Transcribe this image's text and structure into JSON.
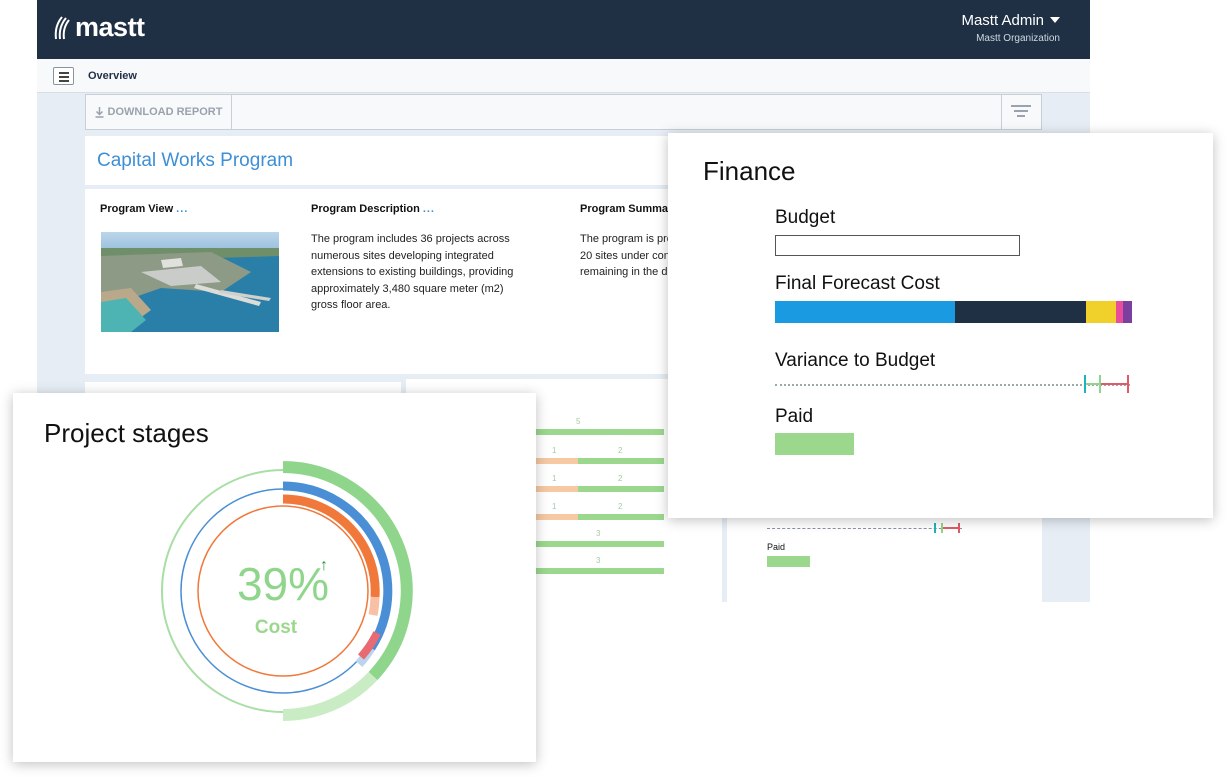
{
  "app": {
    "logo_text": "mastt",
    "user_name": "Mastt Admin",
    "user_org": "Mastt Organization",
    "breadcrumb": "Overview",
    "download_label": "DOWNLOAD REPORT"
  },
  "program": {
    "title": "Capital Works Program",
    "view_heading": "Program View",
    "description_heading": "Program Description",
    "summary_heading": "Program Summar",
    "description_text": "The program includes 36 projects across numerous sites developing integrated extensions to existing buildings, providing approximately 3,480 square meter (m2) gross floor area.",
    "summary_lines": [
      "The program is pro",
      "20 sites under con",
      "remaining in the d"
    ],
    "more_glyph": "..."
  },
  "background_bars": [
    {
      "left_value": "",
      "right_value": "5"
    },
    {
      "left_value": "1",
      "right_value": "2"
    },
    {
      "left_value": "1",
      "right_value": "2"
    },
    {
      "left_value": "1",
      "right_value": "2"
    },
    {
      "left_value": "",
      "right_value": "3"
    },
    {
      "left_value": "",
      "right_value": "3"
    }
  ],
  "background_finance_mini": {
    "paid_label": "Paid"
  },
  "finance": {
    "title": "Finance",
    "budget_label": "Budget",
    "forecast_label": "Final Forecast Cost",
    "variance_label": "Variance to Budget",
    "paid_label": "Paid",
    "forecast_segments": [
      {
        "color": "#1a9ae0",
        "share": 0.505
      },
      {
        "color": "#1f2f44",
        "share": 0.365
      },
      {
        "color": "#f0d02a",
        "share": 0.085
      },
      {
        "color": "#e84c9a",
        "share": 0.02
      },
      {
        "color": "#7b3fa0",
        "share": 0.025
      }
    ],
    "colors": {
      "paid": "#9bd88e",
      "variance_a": "#1db5b5",
      "variance_b": "#8fd68c",
      "variance_c": "#e25a6a"
    }
  },
  "stages": {
    "title": "Project stages",
    "percent": "39%",
    "metric": "Cost",
    "trend_icon": "up-arrow-icon",
    "colors": {
      "green": "#8fd68c",
      "blue": "#4a8fd6",
      "orange": "#f0783a",
      "pink": "#e86a72"
    }
  }
}
